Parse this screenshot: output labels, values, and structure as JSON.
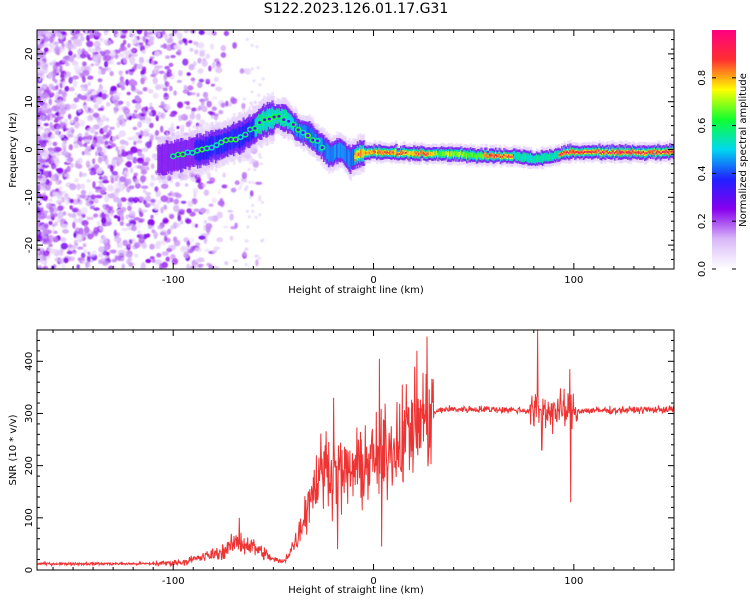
{
  "title": "S122.2023.126.01.17.G31",
  "chart_data": [
    {
      "type": "heatmap",
      "xlabel": "Height of straight line (km)",
      "ylabel": "Frequency (Hz)",
      "xlim": [
        -168,
        150
      ],
      "ylim": [
        -25,
        25
      ],
      "xticks": [
        -100,
        0,
        100
      ],
      "yticks": [
        -20,
        -10,
        0,
        10,
        20
      ],
      "colorbar": {
        "label": "Normalized spectral amplitude",
        "range": [
          0,
          1
        ],
        "ticks": [
          "0.0",
          "0.2",
          "0.4",
          "0.6",
          "0.8"
        ],
        "colors": [
          "#ffffff",
          "#d8b8f8",
          "#8800ee",
          "#2020ff",
          "#00d8f0",
          "#10ff30",
          "#ffff00",
          "#ff3030",
          "#ff0080"
        ]
      },
      "ridge": [
        {
          "x": -105,
          "y": -2
        },
        {
          "x": -95,
          "y": -1
        },
        {
          "x": -85,
          "y": 0
        },
        {
          "x": -75,
          "y": 1.5
        },
        {
          "x": -65,
          "y": 3
        },
        {
          "x": -55,
          "y": 6
        },
        {
          "x": -48,
          "y": 7
        },
        {
          "x": -42,
          "y": 6
        },
        {
          "x": -38,
          "y": 4
        },
        {
          "x": -32,
          "y": 3
        },
        {
          "x": -27,
          "y": 1
        },
        {
          "x": -22,
          "y": -1
        },
        {
          "x": -17,
          "y": 0
        },
        {
          "x": -12,
          "y": -2
        },
        {
          "x": -8,
          "y": -1
        },
        {
          "x": 0,
          "y": -0.5
        },
        {
          "x": 20,
          "y": -0.8
        },
        {
          "x": 40,
          "y": -1
        },
        {
          "x": 55,
          "y": -1.3
        },
        {
          "x": 70,
          "y": -1.3
        },
        {
          "x": 80,
          "y": -2
        },
        {
          "x": 88,
          "y": -1.5
        },
        {
          "x": 95,
          "y": -0.6
        },
        {
          "x": 120,
          "y": -0.6
        },
        {
          "x": 150,
          "y": -0.5
        }
      ]
    },
    {
      "type": "line",
      "xlabel": "Height of straight line (km)",
      "ylabel": "SNR (10 * v/v)",
      "xlim": [
        -168,
        150
      ],
      "ylim": [
        0,
        460
      ],
      "xticks": [
        -100,
        0,
        100
      ],
      "yticks": [
        0,
        100,
        200,
        300,
        400
      ],
      "color": "#ee3333",
      "envelope": [
        {
          "x": -168,
          "y": 12
        },
        {
          "x": -110,
          "y": 12
        },
        {
          "x": -95,
          "y": 15
        },
        {
          "x": -85,
          "y": 25
        },
        {
          "x": -75,
          "y": 35
        },
        {
          "x": -68,
          "y": 55
        },
        {
          "x": -60,
          "y": 45
        },
        {
          "x": -50,
          "y": 20
        },
        {
          "x": -45,
          "y": 15
        },
        {
          "x": -38,
          "y": 60
        },
        {
          "x": -32,
          "y": 140
        },
        {
          "x": -25,
          "y": 200
        },
        {
          "x": -15,
          "y": 180
        },
        {
          "x": -5,
          "y": 200
        },
        {
          "x": 5,
          "y": 220
        },
        {
          "x": 15,
          "y": 260
        },
        {
          "x": 25,
          "y": 295
        },
        {
          "x": 35,
          "y": 308
        },
        {
          "x": 60,
          "y": 308
        },
        {
          "x": 80,
          "y": 305
        },
        {
          "x": 100,
          "y": 305
        },
        {
          "x": 150,
          "y": 308
        }
      ],
      "spikes": [
        {
          "x": -67,
          "y": 100
        },
        {
          "x": -20,
          "y": 330
        },
        {
          "x": -18,
          "y": 40
        },
        {
          "x": 3,
          "y": 405
        },
        {
          "x": 4,
          "y": 45
        },
        {
          "x": 82,
          "y": 460
        },
        {
          "x": 84,
          "y": 230
        },
        {
          "x": 98,
          "y": 385
        },
        {
          "x": 98.5,
          "y": 130
        }
      ]
    }
  ]
}
